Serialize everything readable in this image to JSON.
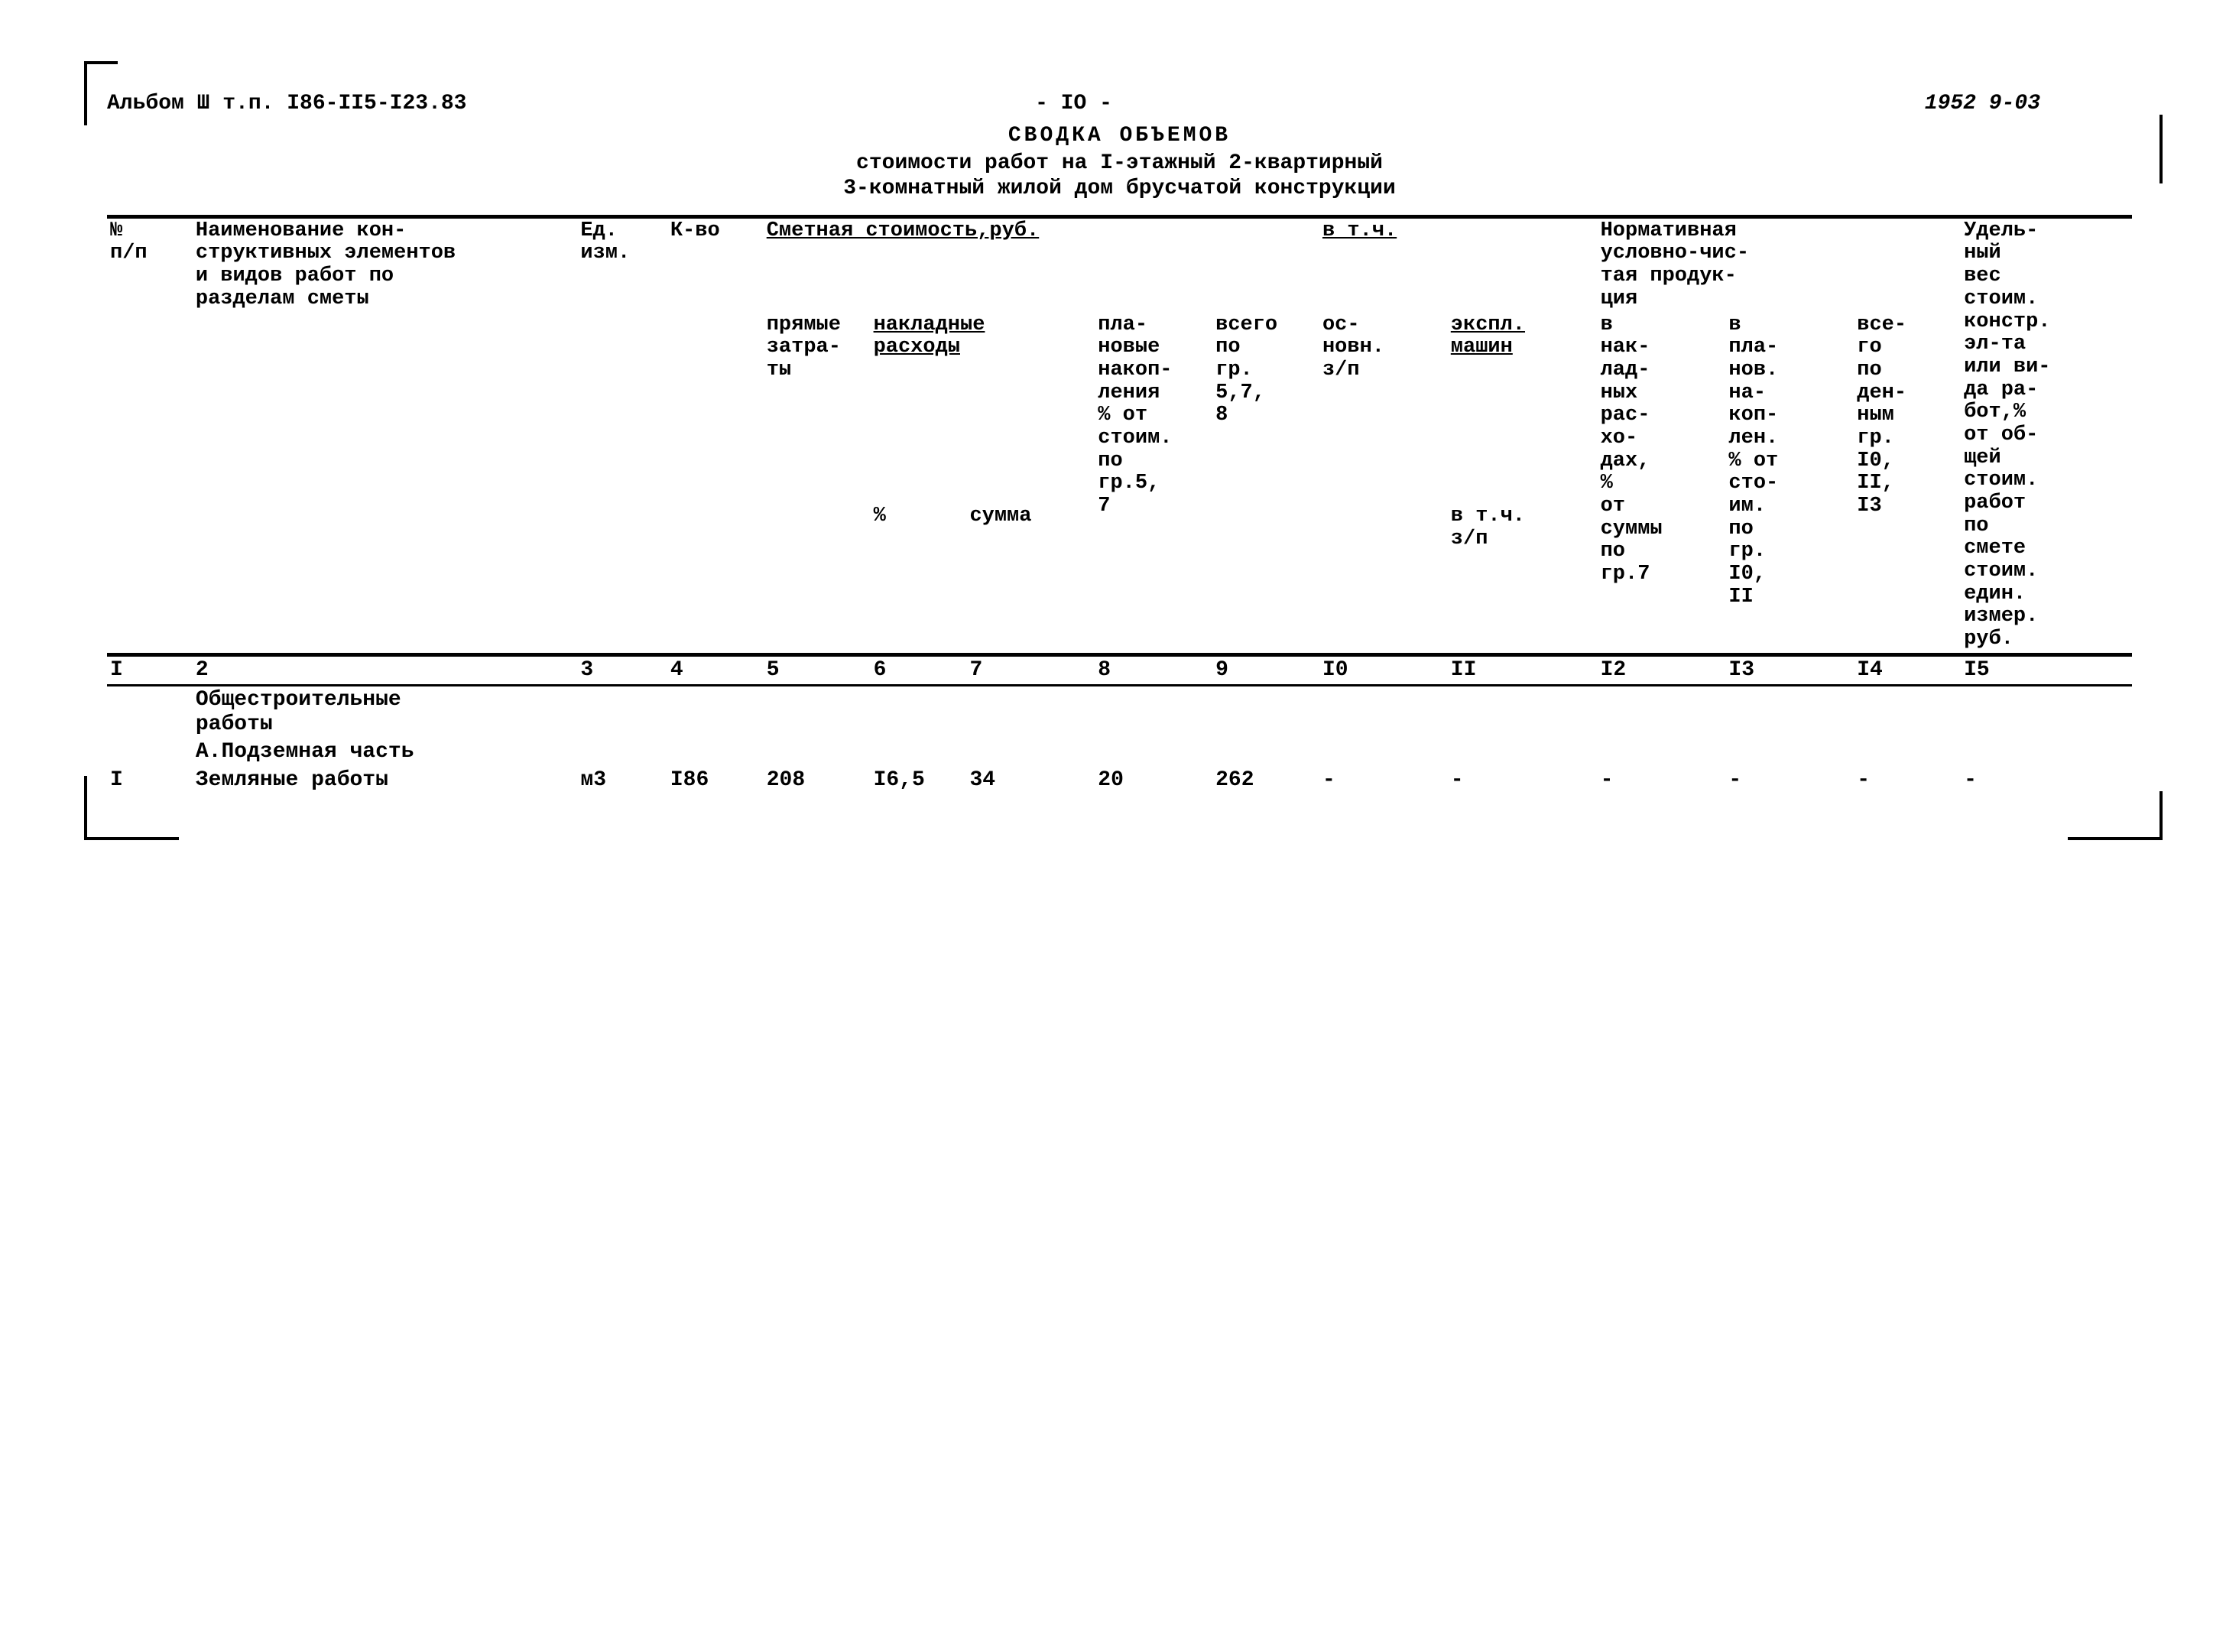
{
  "header": {
    "left": "Альбом Ш т.п. I86-II5-I23.83",
    "center": "- IО -",
    "right": "1952 9-03"
  },
  "title": {
    "line1": "СВОДКА  ОБЪЕМОВ",
    "line2": "стоимости работ на I-этажный 2-квартирный",
    "line3": "3-комнатный жилой дом брусчатой конструкции"
  },
  "columns": {
    "h1": "№\nп/п",
    "h2": "Наименование кон-\nструктивных элементов\nи видов работ по\nразделам сметы",
    "h3": "Ед.\nизм.",
    "h4": "К-во",
    "smet_group": "Сметная стоимость,руб.",
    "h5": "прямые\nзатра-\nты",
    "h67_group": "накладные\nрасходы",
    "h6": "%",
    "h7": "сумма",
    "h8": "пла-\nновые\nнакоп-\nления\n% от\nстоим.\nпо\nгр.5,\n7",
    "h9": "всего\nпо\nгр.\n5,7,\n8",
    "vtch_group": "в т.ч.",
    "h10": "ос-\nновн.\nз/п",
    "h11_group": "экспл.\nмашин",
    "h11": "в т.ч.\nз/п",
    "norm_group": "Нормативная\nусловно-чис-\nтая продук-\nция",
    "h12": "в\nнак-\nлад-\nных\nрас-\nхо-\nдах,\n%\nот\nсуммы\nпо\nгр.7",
    "h13": "в\nпла-\nнов.\nна-\nкоп-\nлен.\n% от\nсто-\nим.\nпо\nгр.\nI0,\nII",
    "h14": "все-\nго\nпо\nден-\nным\nгр.\nI0,\nII,\nI3",
    "h15": "Удель-\nный\nвес\nстоим.\nконстр.\nэл-та\nили ви-\nда ра-\nбот,%\nот об-\nщей\nстоим.\nработ\nпо\nсмете\nстоим.\nедин.\nизмер.\nруб."
  },
  "colnums": [
    "I",
    "2",
    "3",
    "4",
    "5",
    "6",
    "7",
    "8",
    "9",
    "I0",
    "II",
    "I2",
    "I3",
    "I4",
    "I5"
  ],
  "sections": {
    "s1": "Общестроительные\nработы",
    "s2": "А.Подземная часть"
  },
  "rows": [
    {
      "n": "I",
      "name": "Земляные работы",
      "unit": "м3",
      "qty": "I86",
      "c5": "208",
      "c6": "I6,5",
      "c7": "34",
      "c8": "20",
      "c9": "262",
      "c10": "-",
      "c11": "-",
      "c12": "-",
      "c13": "-",
      "c14": "-",
      "c15": "-"
    }
  ]
}
